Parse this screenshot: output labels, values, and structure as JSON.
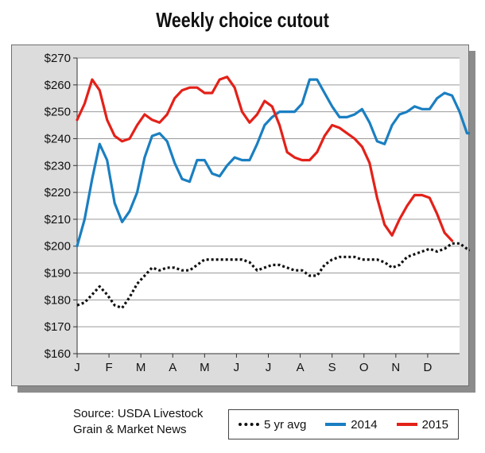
{
  "title": "Weekly choice cutout",
  "source_lines": [
    "Source: USDA Livestock",
    "Grain & Market News"
  ],
  "colors": {
    "avg": "#111111",
    "y2014": "#1a7fc1",
    "y2015": "#e32119"
  },
  "chart_data": {
    "type": "line",
    "title": "Weekly choice cutout",
    "xlabel": "",
    "ylabel": "",
    "ylim": [
      160,
      270
    ],
    "yticks": [
      160,
      170,
      180,
      190,
      200,
      210,
      220,
      230,
      240,
      250,
      260,
      270
    ],
    "ytick_labels": [
      "$160",
      "$170",
      "$180",
      "$190",
      "$200",
      "$210",
      "$220",
      "$230",
      "$240",
      "$250",
      "$260",
      "$270"
    ],
    "month_labels": [
      "J",
      "F",
      "M",
      "A",
      "M",
      "J",
      "J",
      "A",
      "S",
      "O",
      "N",
      "D"
    ],
    "x_range": [
      1,
      52
    ],
    "grid": "horizontal",
    "legend_position": "bottom-right",
    "series": [
      {
        "name": "5 yr avg",
        "style": "dotted",
        "color": "#111111",
        "values": [
          178,
          179,
          182,
          185,
          182,
          178,
          177,
          181,
          186,
          189,
          192,
          191,
          192,
          192,
          191,
          191,
          193,
          195,
          195,
          195,
          195,
          195,
          195,
          194,
          191,
          192,
          193,
          193,
          192,
          191,
          191,
          189,
          189,
          193,
          195,
          196,
          196,
          196,
          195,
          195,
          195,
          194,
          192,
          193,
          196,
          197,
          198,
          199,
          198,
          199,
          201,
          201,
          199,
          198,
          197,
          198
        ]
      },
      {
        "name": "2014",
        "style": "solid",
        "color": "#1a7fc1",
        "values": [
          200,
          210,
          225,
          238,
          232,
          216,
          209,
          213,
          220,
          233,
          241,
          242,
          239,
          231,
          225,
          224,
          232,
          232,
          227,
          226,
          230,
          233,
          232,
          232,
          238,
          245,
          248,
          250,
          250,
          250,
          253,
          262,
          262,
          257,
          252,
          248,
          248,
          249,
          251,
          246,
          239,
          238,
          245,
          249,
          250,
          252,
          251,
          251,
          255,
          257,
          256,
          250,
          242,
          242
        ]
      },
      {
        "name": "2015",
        "style": "solid",
        "color": "#e32119",
        "values": [
          247,
          253,
          262,
          258,
          247,
          241,
          239,
          240,
          245,
          249,
          247,
          246,
          249,
          255,
          258,
          259,
          259,
          257,
          257,
          262,
          263,
          259,
          250,
          246,
          249,
          254,
          252,
          245,
          235,
          233,
          232,
          232,
          235,
          241,
          245,
          244,
          242,
          240,
          237,
          231,
          218,
          208,
          204,
          210,
          215,
          219,
          219,
          218,
          212,
          205,
          202
        ]
      }
    ]
  }
}
